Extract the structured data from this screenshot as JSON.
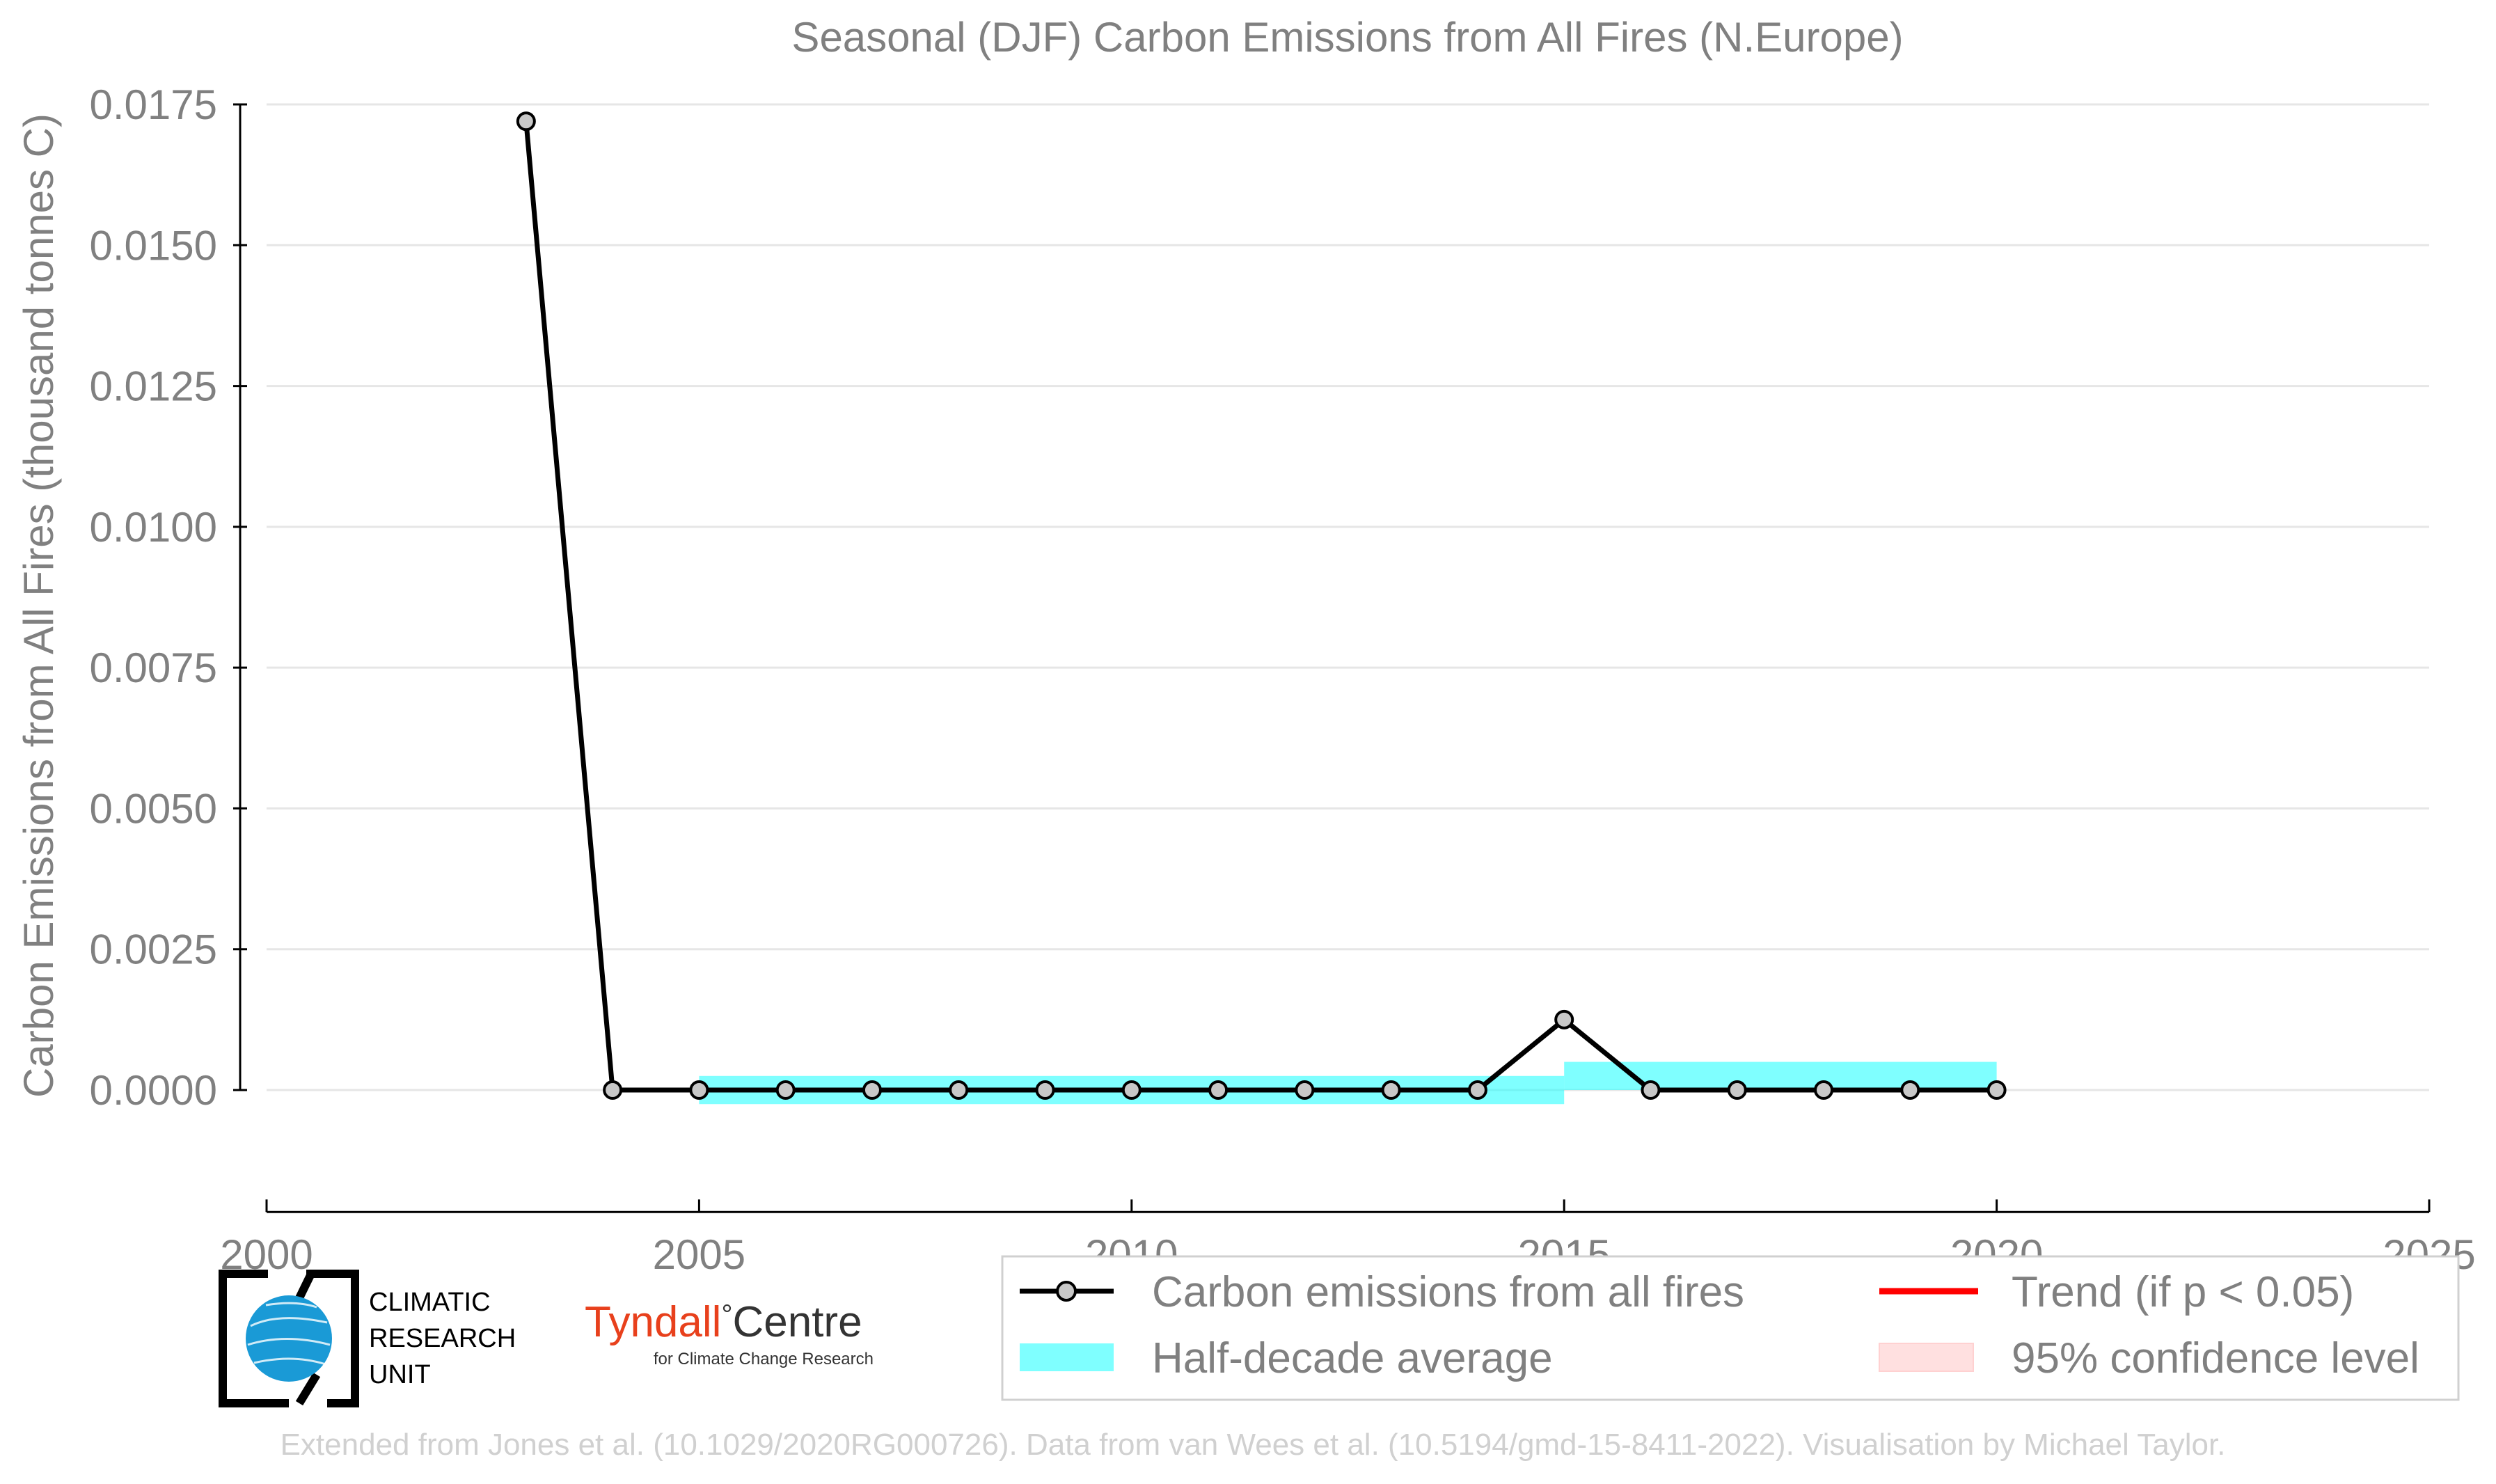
{
  "chart_data": {
    "type": "line",
    "title": "Seasonal (DJF) Carbon Emissions from All Fires (N.Europe)",
    "xlabel": "",
    "ylabel": "Carbon Emissions from All Fires (thousand tonnes C)",
    "xlim": [
      2000,
      2025
    ],
    "ylim": [
      -0.00135,
      0.0175
    ],
    "xticks": [
      2000,
      2005,
      2010,
      2015,
      2020,
      2025
    ],
    "xtick_labels": [
      "2000",
      "2005",
      "2010",
      "2015",
      "2020",
      "2025"
    ],
    "yticks": [
      0.0,
      0.0025,
      0.005,
      0.0075,
      0.01,
      0.0125,
      0.015,
      0.0175
    ],
    "ytick_labels": [
      "0.0000",
      "0.0025",
      "0.0050",
      "0.0075",
      "0.0100",
      "0.0125",
      "0.0150",
      "0.0175"
    ],
    "grid": "horizontal",
    "legend_position": "bottom-right",
    "series": [
      {
        "name": "Carbon emissions from all fires",
        "x": [
          2003,
          2004,
          2005,
          2006,
          2007,
          2008,
          2009,
          2010,
          2011,
          2012,
          2013,
          2014,
          2015,
          2016,
          2017,
          2018,
          2019,
          2020
        ],
        "values": [
          0.0172,
          0.0,
          0.0,
          0.0,
          0.0,
          0.0,
          0.0,
          0.0,
          0.0,
          0.0,
          0.0,
          0.0,
          0.00125,
          0.0,
          0.0,
          0.0,
          0.0,
          0.0
        ],
        "color": "#000000",
        "marker_fill": "#c8c8c8"
      }
    ],
    "half_decade_average": {
      "name": "Half-decade average",
      "color": "#00ffff",
      "bands": [
        {
          "x_start": 2005,
          "x_end": 2015,
          "mean": 0.0,
          "low": -0.00025,
          "high": 0.00025
        },
        {
          "x_start": 2015,
          "x_end": 2020,
          "mean": 0.00025,
          "low": 0.0,
          "high": 0.0005
        }
      ]
    },
    "legend": [
      {
        "label": "Carbon emissions from all fires",
        "kind": "line-marker",
        "color": "#000000"
      },
      {
        "label": "Trend (if p < 0.05)",
        "kind": "line",
        "color": "#ff0000"
      },
      {
        "label": "Half-decade average",
        "kind": "patch",
        "color": "#00ffff"
      },
      {
        "label": "95% confidence level",
        "kind": "patch",
        "color": "#ffcccc"
      }
    ]
  },
  "logos": {
    "cru": {
      "line1": "CLIMATIC",
      "line2": "RESEARCH",
      "line3": "UNIT"
    },
    "tyndall": {
      "name_left": "Tyndall",
      "degree": "°",
      "name_right": "Centre",
      "subtitle": "for Climate Change Research",
      "accent_color": "#e8401c"
    }
  },
  "credit": "Extended from Jones et al. (10.1029/2020RG000726). Data from van Wees et al. (10.5194/gmd-15-8411-2022). Visualisation by Michael Taylor."
}
